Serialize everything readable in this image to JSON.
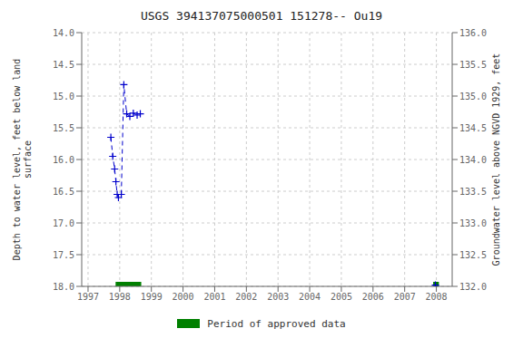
{
  "chart_data": {
    "type": "line",
    "title": "USGS 394137075000501 151278-- Ou19",
    "y_label": "Depth to water level, feet below land\nsurface",
    "y2_label": "Groundwater level above NGVD 1929, feet",
    "xlim": [
      1996.8,
      2008.5
    ],
    "xticks": [
      1997,
      1998,
      1999,
      2000,
      2001,
      2002,
      2003,
      2004,
      2005,
      2006,
      2007,
      2008
    ],
    "ylim": [
      18.0,
      14.0
    ],
    "yticks": [
      {
        "value": 14.0,
        "label": "14.0"
      },
      {
        "value": 14.5,
        "label": "14.5"
      },
      {
        "value": 15.0,
        "label": "15.0"
      },
      {
        "value": 15.5,
        "label": "15.5"
      },
      {
        "value": 16.0,
        "label": "16.0"
      },
      {
        "value": 16.5,
        "label": "16.5"
      },
      {
        "value": 17.0,
        "label": "17.0"
      },
      {
        "value": 17.5,
        "label": "17.5"
      },
      {
        "value": 18.0,
        "label": "18.0"
      }
    ],
    "y2lim": [
      132.0,
      136.0
    ],
    "y2ticks": [
      {
        "value": 136.0,
        "label": "136.0"
      },
      {
        "value": 135.5,
        "label": "135.5"
      },
      {
        "value": 135.0,
        "label": "135.0"
      },
      {
        "value": 134.5,
        "label": "134.5"
      },
      {
        "value": 134.0,
        "label": "134.0"
      },
      {
        "value": 133.5,
        "label": "133.5"
      },
      {
        "value": 133.0,
        "label": "133.0"
      },
      {
        "value": 132.5,
        "label": "132.5"
      },
      {
        "value": 132.0,
        "label": "132.0"
      }
    ],
    "grid": true,
    "series": [
      {
        "x": [
          1997.72,
          1997.78,
          1997.84,
          1997.88,
          1997.92,
          1997.96
        ],
        "values": [
          15.65,
          15.95,
          16.15,
          16.35,
          16.55,
          16.6
        ],
        "color": "#0000cc",
        "line_style": "dashed",
        "marker": "+"
      },
      {
        "x": [
          1998.05,
          1998.13,
          1998.22,
          1998.32,
          1998.43,
          1998.55,
          1998.65
        ],
        "values": [
          16.55,
          14.82,
          15.28,
          15.32,
          15.27,
          15.3,
          15.28
        ],
        "color": "#0000cc",
        "line_style": "dashed",
        "marker": "+"
      },
      {
        "x": [
          2007.97
        ],
        "values": [
          17.98
        ],
        "color": "#0000cc",
        "line_style": "none",
        "marker": "+"
      }
    ],
    "approved_periods": [
      {
        "start": 1997.87,
        "end": 1998.68
      },
      {
        "start": 2007.9,
        "end": 2008.08
      }
    ],
    "approved_y": 18.0,
    "approved_color": "#008000",
    "approved_label": "Period of approved data",
    "legend": "bottom"
  }
}
